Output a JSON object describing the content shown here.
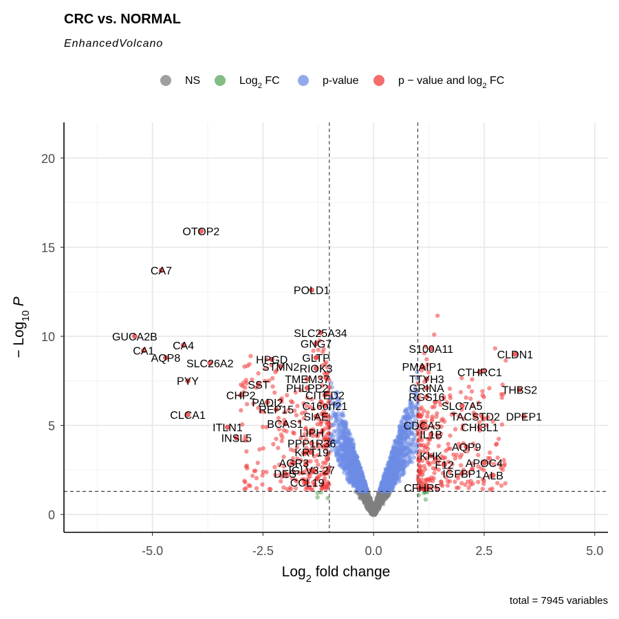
{
  "chart_data": {
    "type": "scatter",
    "title": "CRC vs. NORMAL",
    "subtitle": "EnhancedVolcano",
    "xlabel": "Log2 fold change",
    "ylabel": "− Log10 P",
    "caption": "total = 7945 variables",
    "xlim": [
      -7.0,
      5.3
    ],
    "ylim": [
      -1.0,
      22.0
    ],
    "x_ticks": [
      -5.0,
      -2.5,
      0.0,
      2.5,
      5.0
    ],
    "x_tick_labels": [
      "-5.0",
      "-2.5",
      "0.0",
      "2.5",
      "5.0"
    ],
    "y_ticks": [
      0,
      5,
      10,
      15,
      20
    ],
    "y_tick_labels": [
      "0",
      "5",
      "10",
      "15",
      "20"
    ],
    "fc_cutoff": 1.0,
    "p_cutoff_neglog10": 1.3,
    "grid": true,
    "legend_position": "top",
    "legend": [
      {
        "key": "ns",
        "label": "NS",
        "color": "#7f7f7f"
      },
      {
        "key": "fc",
        "label": "Log2 FC",
        "color": "#5aa75a"
      },
      {
        "key": "p",
        "label": "p-value",
        "color": "#6d8de6"
      },
      {
        "key": "both",
        "label": "p − value and log2 FC",
        "color": "#f23b3b"
      }
    ],
    "labeled_points": [
      {
        "gene": "OTOP2",
        "x": -3.9,
        "y": 15.9
      },
      {
        "gene": "CA7",
        "x": -4.8,
        "y": 13.7
      },
      {
        "gene": "POLD1",
        "x": -1.4,
        "y": 12.6
      },
      {
        "gene": "GUCA2B",
        "x": -5.4,
        "y": 10.0
      },
      {
        "gene": "CA1",
        "x": -5.2,
        "y": 9.2
      },
      {
        "gene": "CA4",
        "x": -4.3,
        "y": 9.5
      },
      {
        "gene": "AQP8",
        "x": -4.7,
        "y": 8.8
      },
      {
        "gene": "SLC26A2",
        "x": -3.7,
        "y": 8.5
      },
      {
        "gene": "PYY",
        "x": -4.2,
        "y": 7.5
      },
      {
        "gene": "CHP2",
        "x": -3.0,
        "y": 6.7
      },
      {
        "gene": "CLCA1",
        "x": -4.2,
        "y": 5.6
      },
      {
        "gene": "ITLN1",
        "x": -3.3,
        "y": 4.9
      },
      {
        "gene": "INSL5",
        "x": -3.1,
        "y": 4.3
      },
      {
        "gene": "SLC25A34",
        "x": -1.2,
        "y": 10.2
      },
      {
        "gene": "GNG7",
        "x": -1.3,
        "y": 9.6
      },
      {
        "gene": "HPGD",
        "x": -2.3,
        "y": 8.7
      },
      {
        "gene": "GLTP",
        "x": -1.3,
        "y": 8.8
      },
      {
        "gene": "STMN2",
        "x": -2.1,
        "y": 8.3
      },
      {
        "gene": "RIOK3",
        "x": -1.3,
        "y": 8.2
      },
      {
        "gene": "SST",
        "x": -2.6,
        "y": 7.3
      },
      {
        "gene": "TMEM37",
        "x": -1.5,
        "y": 7.6
      },
      {
        "gene": "PHLPP2",
        "x": -1.5,
        "y": 7.1
      },
      {
        "gene": "PADI2",
        "x": -2.4,
        "y": 6.3
      },
      {
        "gene": "CITED2",
        "x": -1.1,
        "y": 6.7
      },
      {
        "gene": "C16orf21",
        "x": -1.1,
        "y": 6.1
      },
      {
        "gene": "REP15",
        "x": -2.2,
        "y": 5.9
      },
      {
        "gene": "SIAE",
        "x": -1.3,
        "y": 5.5
      },
      {
        "gene": "BCAS1",
        "x": -2.0,
        "y": 5.1
      },
      {
        "gene": "LIPH",
        "x": -1.4,
        "y": 4.6
      },
      {
        "gene": "PPP1R36",
        "x": -1.4,
        "y": 4.0
      },
      {
        "gene": "KRT19",
        "x": -1.4,
        "y": 3.5
      },
      {
        "gene": "AGR3",
        "x": -1.8,
        "y": 2.9
      },
      {
        "gene": "DES",
        "x": -2.0,
        "y": 2.3
      },
      {
        "gene": "IGLV3-27",
        "x": -1.4,
        "y": 2.5
      },
      {
        "gene": "CCL19",
        "x": -1.5,
        "y": 1.8
      },
      {
        "gene": "S100A11",
        "x": 1.3,
        "y": 9.3
      },
      {
        "gene": "CLDN1",
        "x": 3.2,
        "y": 9.0
      },
      {
        "gene": "PMAIP1",
        "x": 1.1,
        "y": 8.3
      },
      {
        "gene": "CTHRC1",
        "x": 2.4,
        "y": 8.0
      },
      {
        "gene": "TTYH3",
        "x": 1.2,
        "y": 7.6
      },
      {
        "gene": "GRINA",
        "x": 1.2,
        "y": 7.1
      },
      {
        "gene": "THBS2",
        "x": 3.3,
        "y": 7.0
      },
      {
        "gene": "RGS16",
        "x": 1.2,
        "y": 6.6
      },
      {
        "gene": "SLC7A5",
        "x": 2.0,
        "y": 6.1
      },
      {
        "gene": "TACSTD2",
        "x": 2.3,
        "y": 5.5
      },
      {
        "gene": "DPEP1",
        "x": 3.4,
        "y": 5.5
      },
      {
        "gene": "CDCA5",
        "x": 1.1,
        "y": 5.0
      },
      {
        "gene": "CHI3L1",
        "x": 2.4,
        "y": 4.9
      },
      {
        "gene": "IL1B",
        "x": 1.3,
        "y": 4.5
      },
      {
        "gene": "AQP9",
        "x": 2.1,
        "y": 3.8
      },
      {
        "gene": "KHK",
        "x": 1.3,
        "y": 3.3
      },
      {
        "gene": "F12",
        "x": 1.6,
        "y": 2.8
      },
      {
        "gene": "APOC4",
        "x": 2.5,
        "y": 2.9
      },
      {
        "gene": "IGFBP1",
        "x": 2.0,
        "y": 2.3
      },
      {
        "gene": "ALB",
        "x": 2.7,
        "y": 2.2
      },
      {
        "gene": "CFHR5",
        "x": 1.1,
        "y": 1.5
      }
    ]
  }
}
